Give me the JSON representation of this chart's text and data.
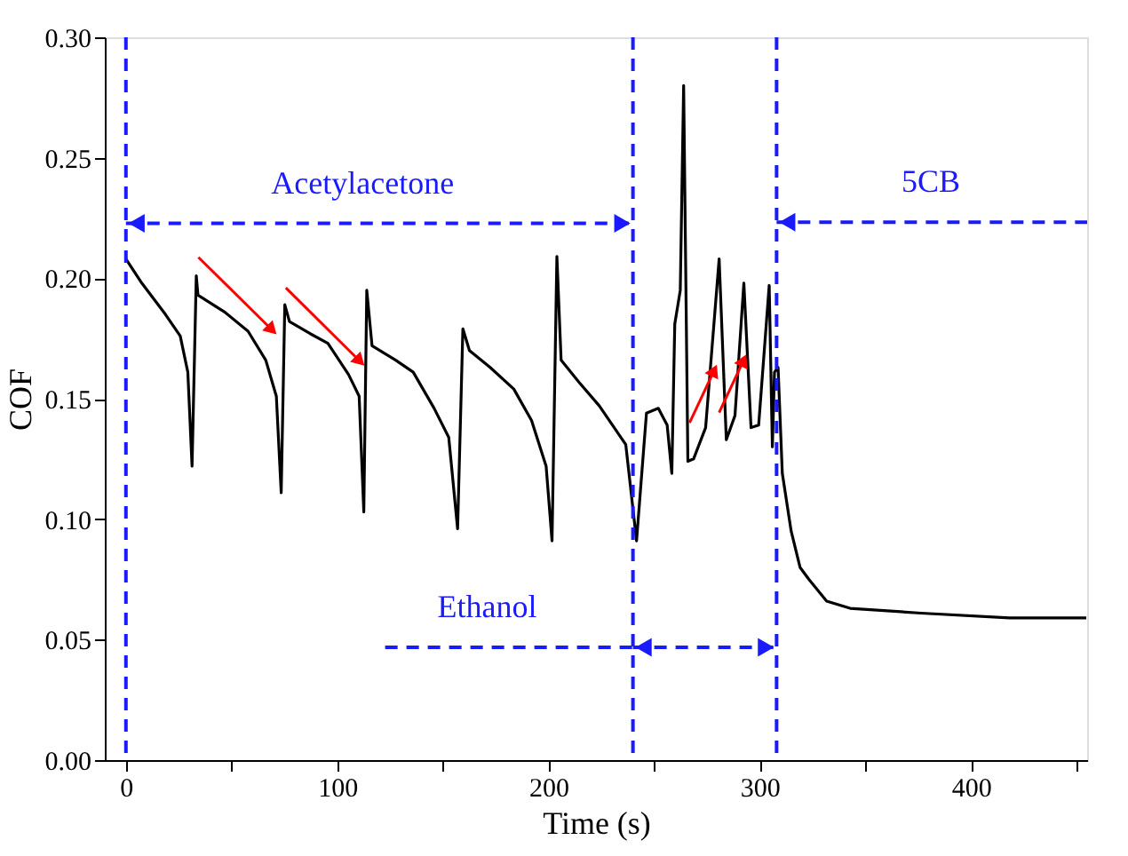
{
  "chart_data": {
    "type": "line",
    "xlabel": "Time (s)",
    "ylabel": "COF",
    "xlim": [
      -10,
      455
    ],
    "ylim": [
      0,
      0.3
    ],
    "xticks": [
      0,
      {
        "value": 50,
        "label": null
      },
      100,
      {
        "value": 150,
        "label": null
      },
      200,
      {
        "value": 250,
        "label": null
      },
      300,
      {
        "value": 350,
        "label": null
      },
      400,
      {
        "value": 450,
        "label": null
      }
    ],
    "yticks": [
      {
        "value": 0,
        "label": "0.00"
      },
      0.05,
      {
        "value": 0.1,
        "label": "0.10"
      },
      0.15,
      {
        "value": 0.2,
        "label": "0.20"
      },
      0.25,
      {
        "value": 0.3,
        "label": "0.30"
      }
    ],
    "grid": false,
    "marker": "none",
    "line_style": "solid",
    "series": [
      {
        "color": "#000000",
        "x": [
          0,
          7.5,
          18.7,
          25.7,
          29.3,
          31.3,
          33.3,
          34.1,
          46.7,
          57.8,
          66.2,
          71.2,
          73.5,
          75.2,
          77.4,
          87.2,
          95.6,
          105.4,
          110.4,
          112.6,
          114,
          116.5,
          127.7,
          136,
          145.9,
          152.8,
          157,
          159.5,
          162.6,
          172.4,
          183.6,
          192,
          198.9,
          201.7,
          204,
          206,
          214.3,
          224.1,
          236.6,
          241.7,
          246.4,
          252,
          256.2,
          258.4,
          259.8,
          262.4,
          264,
          266,
          268.7,
          274.4,
          280.8,
          284.2,
          288.3,
          292.5,
          295.9,
          299.5,
          304.5,
          306,
          307,
          308.7,
          310.7,
          314.9,
          319.1,
          323.3,
          331.7,
          342.8,
          376.4,
          418.3,
          454.6
        ],
        "values": [
          0.208,
          0.198,
          0.185,
          0.176,
          0.161,
          0.122,
          0.201,
          0.193,
          0.186,
          0.178,
          0.166,
          0.151,
          0.111,
          0.189,
          0.182,
          0.177,
          0.173,
          0.16,
          0.151,
          0.103,
          0.195,
          0.172,
          0.166,
          0.161,
          0.146,
          0.134,
          0.096,
          0.179,
          0.17,
          0.163,
          0.154,
          0.141,
          0.122,
          0.091,
          0.209,
          0.166,
          0.157,
          0.147,
          0.131,
          0.091,
          0.144,
          0.146,
          0.139,
          0.119,
          0.181,
          0.195,
          0.28,
          0.124,
          0.125,
          0.138,
          0.208,
          0.133,
          0.143,
          0.198,
          0.138,
          0.139,
          0.197,
          0.13,
          0.161,
          0.163,
          0.119,
          0.095,
          0.08,
          0.075,
          0.066,
          0.063,
          0.061,
          0.059,
          0.059
        ]
      }
    ],
    "ref_lines": [
      {
        "axis": "x",
        "value": 0,
        "color": "#1a1aff",
        "line_style": "dashed"
      },
      {
        "axis": "x",
        "value": 240,
        "color": "#1a1aff",
        "line_style": "dashed"
      },
      {
        "axis": "x",
        "value": 308,
        "color": "#1a1aff",
        "line_style": "dashed"
      }
    ],
    "annotations": [
      "Acetylacetone",
      "Ethanol",
      "5CB"
    ]
  }
}
